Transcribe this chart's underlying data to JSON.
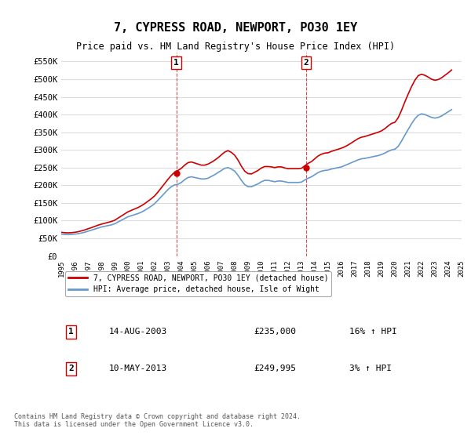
{
  "title": "7, CYPRESS ROAD, NEWPORT, PO30 1EY",
  "subtitle": "Price paid vs. HM Land Registry's House Price Index (HPI)",
  "ylabel_ticks": [
    "£0",
    "£50K",
    "£100K",
    "£150K",
    "£200K",
    "£250K",
    "£300K",
    "£350K",
    "£400K",
    "£450K",
    "£500K",
    "£550K"
  ],
  "ytick_values": [
    0,
    50000,
    100000,
    150000,
    200000,
    250000,
    300000,
    350000,
    400000,
    450000,
    500000,
    550000
  ],
  "ylim": [
    0,
    575000
  ],
  "xlim_start": 1995,
  "xlim_end": 2025,
  "xticks": [
    1995,
    1996,
    1997,
    1998,
    1999,
    2000,
    2001,
    2002,
    2003,
    2004,
    2005,
    2006,
    2007,
    2008,
    2009,
    2010,
    2011,
    2012,
    2013,
    2014,
    2015,
    2016,
    2017,
    2018,
    2019,
    2020,
    2021,
    2022,
    2023,
    2024,
    2025
  ],
  "hpi_color": "#6699cc",
  "price_color": "#cc0000",
  "vline_color": "#cc0000",
  "marker_color": "#cc0000",
  "grid_color": "#dddddd",
  "bg_color": "#ffffff",
  "legend_label_price": "7, CYPRESS ROAD, NEWPORT, PO30 1EY (detached house)",
  "legend_label_hpi": "HPI: Average price, detached house, Isle of Wight",
  "transaction1_label": "1",
  "transaction1_date": "14-AUG-2003",
  "transaction1_price": "£235,000",
  "transaction1_hpi": "16% ↑ HPI",
  "transaction1_x": 2003.62,
  "transaction1_y": 235000,
  "transaction2_label": "2",
  "transaction2_date": "10-MAY-2013",
  "transaction2_price": "£249,995",
  "transaction2_hpi": "3% ↑ HPI",
  "transaction2_x": 2013.36,
  "transaction2_y": 249995,
  "footer": "Contains HM Land Registry data © Crown copyright and database right 2024.\nThis data is licensed under the Open Government Licence v3.0.",
  "hpi_data_x": [
    1995.0,
    1995.25,
    1995.5,
    1995.75,
    1996.0,
    1996.25,
    1996.5,
    1996.75,
    1997.0,
    1997.25,
    1997.5,
    1997.75,
    1998.0,
    1998.25,
    1998.5,
    1998.75,
    1999.0,
    1999.25,
    1999.5,
    1999.75,
    2000.0,
    2000.25,
    2000.5,
    2000.75,
    2001.0,
    2001.25,
    2001.5,
    2001.75,
    2002.0,
    2002.25,
    2002.5,
    2002.75,
    2003.0,
    2003.25,
    2003.5,
    2003.75,
    2004.0,
    2004.25,
    2004.5,
    2004.75,
    2005.0,
    2005.25,
    2005.5,
    2005.75,
    2006.0,
    2006.25,
    2006.5,
    2006.75,
    2007.0,
    2007.25,
    2007.5,
    2007.75,
    2008.0,
    2008.25,
    2008.5,
    2008.75,
    2009.0,
    2009.25,
    2009.5,
    2009.75,
    2010.0,
    2010.25,
    2010.5,
    2010.75,
    2011.0,
    2011.25,
    2011.5,
    2011.75,
    2012.0,
    2012.25,
    2012.5,
    2012.75,
    2013.0,
    2013.25,
    2013.5,
    2013.75,
    2014.0,
    2014.25,
    2014.5,
    2014.75,
    2015.0,
    2015.25,
    2015.5,
    2015.75,
    2016.0,
    2016.25,
    2016.5,
    2016.75,
    2017.0,
    2017.25,
    2017.5,
    2017.75,
    2018.0,
    2018.25,
    2018.5,
    2018.75,
    2019.0,
    2019.25,
    2019.5,
    2019.75,
    2020.0,
    2020.25,
    2020.5,
    2020.75,
    2021.0,
    2021.25,
    2021.5,
    2021.75,
    2022.0,
    2022.25,
    2022.5,
    2022.75,
    2023.0,
    2023.25,
    2023.5,
    2023.75,
    2024.0,
    2024.25
  ],
  "hpi_data_y": [
    62000,
    61000,
    60500,
    61000,
    62000,
    63000,
    65000,
    67000,
    70000,
    73000,
    76000,
    79000,
    82000,
    84000,
    86000,
    88000,
    91000,
    96000,
    101000,
    106000,
    111000,
    114000,
    117000,
    120000,
    124000,
    129000,
    135000,
    141000,
    148000,
    158000,
    168000,
    178000,
    188000,
    196000,
    201000,
    203000,
    208000,
    216000,
    222000,
    224000,
    222000,
    220000,
    218000,
    218000,
    220000,
    225000,
    230000,
    236000,
    242000,
    248000,
    250000,
    246000,
    240000,
    228000,
    214000,
    202000,
    196000,
    196000,
    200000,
    204000,
    210000,
    214000,
    214000,
    212000,
    210000,
    212000,
    212000,
    210000,
    208000,
    208000,
    208000,
    208000,
    209000,
    215000,
    220000,
    224000,
    230000,
    236000,
    240000,
    242000,
    243000,
    246000,
    248000,
    250000,
    252000,
    256000,
    260000,
    264000,
    268000,
    272000,
    275000,
    276000,
    278000,
    280000,
    282000,
    284000,
    287000,
    291000,
    296000,
    300000,
    302000,
    310000,
    325000,
    342000,
    358000,
    374000,
    388000,
    398000,
    402000,
    400000,
    396000,
    392000,
    390000,
    392000,
    396000,
    402000,
    408000,
    414000
  ],
  "price_data_x": [
    1995.0,
    1995.25,
    1995.5,
    1995.75,
    1996.0,
    1996.25,
    1996.5,
    1996.75,
    1997.0,
    1997.25,
    1997.5,
    1997.75,
    1998.0,
    1998.25,
    1998.5,
    1998.75,
    1999.0,
    1999.25,
    1999.5,
    1999.75,
    2000.0,
    2000.25,
    2000.5,
    2000.75,
    2001.0,
    2001.25,
    2001.5,
    2001.75,
    2002.0,
    2002.25,
    2002.5,
    2002.75,
    2003.0,
    2003.25,
    2003.5,
    2003.75,
    2004.0,
    2004.25,
    2004.5,
    2004.75,
    2005.0,
    2005.25,
    2005.5,
    2005.75,
    2006.0,
    2006.25,
    2006.5,
    2006.75,
    2007.0,
    2007.25,
    2007.5,
    2007.75,
    2008.0,
    2008.25,
    2008.5,
    2008.75,
    2009.0,
    2009.25,
    2009.5,
    2009.75,
    2010.0,
    2010.25,
    2010.5,
    2010.75,
    2011.0,
    2011.25,
    2011.5,
    2011.75,
    2012.0,
    2012.25,
    2012.5,
    2012.75,
    2013.0,
    2013.25,
    2013.5,
    2013.75,
    2014.0,
    2014.25,
    2014.5,
    2014.75,
    2015.0,
    2015.25,
    2015.5,
    2015.75,
    2016.0,
    2016.25,
    2016.5,
    2016.75,
    2017.0,
    2017.25,
    2017.5,
    2017.75,
    2018.0,
    2018.25,
    2018.5,
    2018.75,
    2019.0,
    2019.25,
    2019.5,
    2019.75,
    2020.0,
    2020.25,
    2020.5,
    2020.75,
    2021.0,
    2021.25,
    2021.5,
    2021.75,
    2022.0,
    2022.25,
    2022.5,
    2022.75,
    2023.0,
    2023.25,
    2023.5,
    2023.75,
    2024.0,
    2024.25
  ],
  "price_data_y": [
    67000,
    66000,
    65500,
    66000,
    67000,
    68500,
    71000,
    73500,
    77000,
    80000,
    83500,
    87000,
    90000,
    92500,
    95000,
    97500,
    101000,
    107000,
    113000,
    119000,
    125000,
    129000,
    133000,
    137000,
    142000,
    148000,
    155000,
    162000,
    170000,
    181000,
    193000,
    205000,
    217000,
    228000,
    237000,
    242000,
    248000,
    257000,
    264000,
    266000,
    263000,
    260000,
    257000,
    257000,
    260000,
    265000,
    271000,
    278000,
    286000,
    294000,
    298000,
    293000,
    285000,
    271000,
    254000,
    240000,
    233000,
    232000,
    237000,
    242000,
    249000,
    253000,
    253000,
    252000,
    250000,
    252000,
    252000,
    249000,
    247000,
    247000,
    247000,
    247000,
    248000,
    255000,
    262000,
    267000,
    275000,
    283000,
    288000,
    291000,
    292000,
    296000,
    299000,
    302000,
    305000,
    309000,
    314000,
    320000,
    326000,
    332000,
    336000,
    338000,
    341000,
    344000,
    347000,
    350000,
    354000,
    360000,
    368000,
    375000,
    378000,
    391000,
    412000,
    436000,
    458000,
    479000,
    497000,
    510000,
    514000,
    511000,
    506000,
    500000,
    497000,
    499000,
    504000,
    511000,
    518000,
    526000
  ]
}
